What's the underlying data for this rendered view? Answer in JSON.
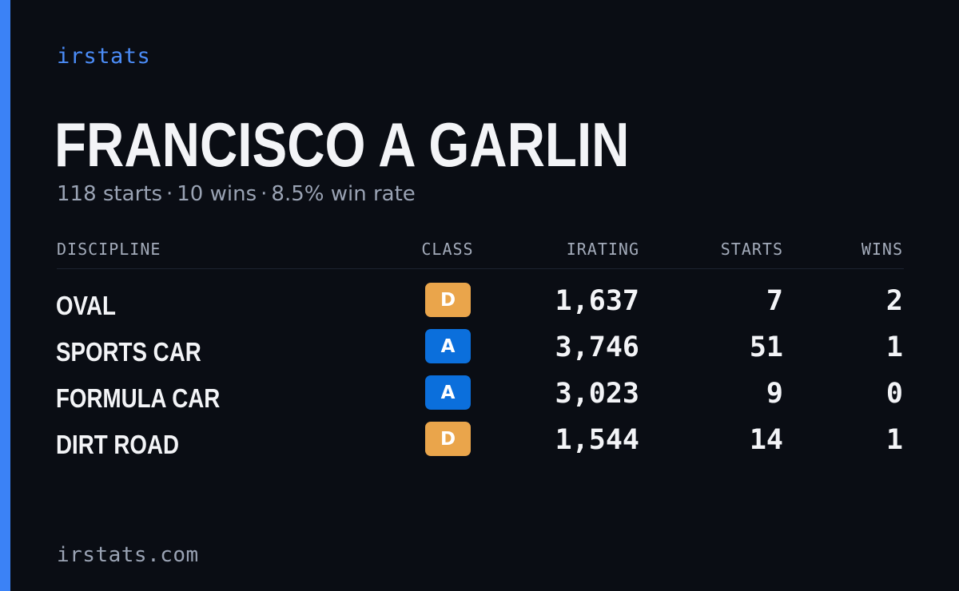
{
  "brand": "irstats",
  "driver": {
    "name": "FRANCISCO A GARLIN",
    "starts_text": "118 starts",
    "wins_text": "10 wins",
    "win_rate_text": "8.5% win rate",
    "separator": "·"
  },
  "table": {
    "headers": {
      "discipline": "DISCIPLINE",
      "class": "CLASS",
      "irating": "IRATING",
      "starts": "STARTS",
      "wins": "WINS"
    },
    "rows": [
      {
        "discipline": "OVAL",
        "class": "D",
        "irating": "1,637",
        "starts": "7",
        "wins": "2"
      },
      {
        "discipline": "SPORTS CAR",
        "class": "A",
        "irating": "3,746",
        "starts": "51",
        "wins": "1"
      },
      {
        "discipline": "FORMULA CAR",
        "class": "A",
        "irating": "3,023",
        "starts": "9",
        "wins": "0"
      },
      {
        "discipline": "DIRT ROAD",
        "class": "D",
        "irating": "1,544",
        "starts": "14",
        "wins": "1"
      }
    ]
  },
  "class_colors": {
    "A": "#0b6fdc",
    "D": "#eaa54b"
  },
  "colors": {
    "accent": "#3b82f6",
    "background": "#0a0d14"
  },
  "footer": "irstats.com"
}
